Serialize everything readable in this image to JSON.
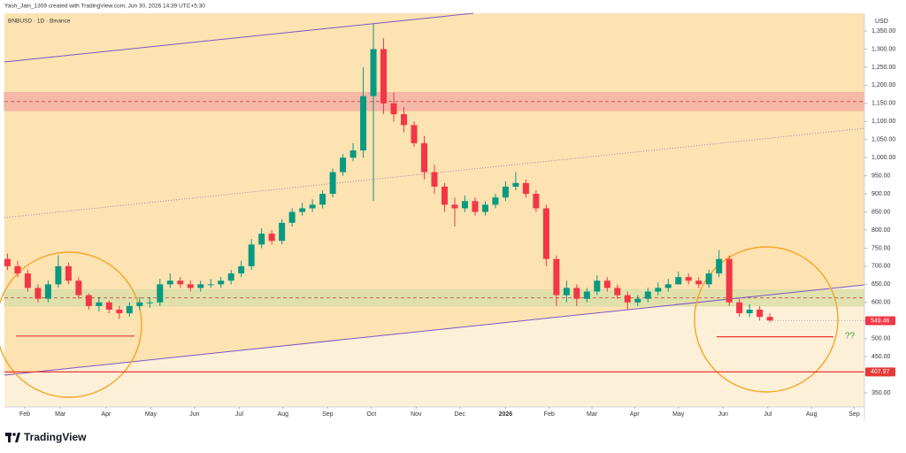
{
  "header": "Yash_Jain_1309 created with TradingView.com, Jun 30, 2026 14:39 UTC+5:30",
  "brand": "TradingView",
  "chart_data": {
    "type": "candlestick",
    "title": "BNBUSD · 1D · Binance",
    "currency": "USD",
    "annotation": "??",
    "up_color": "#089981",
    "down_color": "#f23645",
    "open": [
      720,
      700,
      680,
      640,
      610,
      650,
      700,
      660,
      620,
      590,
      600,
      580,
      570,
      590,
      600,
      600,
      650,
      660,
      650,
      640,
      650,
      650,
      660,
      680,
      700,
      760,
      790,
      770,
      820,
      850,
      860,
      870,
      900,
      960,
      1000,
      1020,
      1170,
      1300,
      1150,
      1120,
      1090,
      1040,
      960,
      920,
      870,
      860,
      880,
      850,
      870,
      890,
      920,
      930,
      900,
      860,
      720,
      620,
      640,
      610,
      630,
      660,
      640,
      620,
      600,
      610,
      630,
      640,
      650,
      670,
      660,
      650,
      680,
      720,
      600,
      570,
      580,
      560
    ],
    "high": [
      735,
      715,
      690,
      650,
      660,
      730,
      710,
      670,
      625,
      615,
      605,
      590,
      600,
      615,
      615,
      665,
      680,
      670,
      660,
      660,
      665,
      670,
      690,
      715,
      775,
      805,
      800,
      830,
      860,
      875,
      885,
      910,
      970,
      1010,
      1040,
      1250,
      1370,
      1330,
      1180,
      1140,
      1100,
      1060,
      980,
      930,
      890,
      895,
      890,
      880,
      900,
      935,
      960,
      940,
      910,
      870,
      730,
      660,
      650,
      640,
      675,
      670,
      650,
      630,
      620,
      640,
      655,
      665,
      685,
      680,
      670,
      690,
      745,
      730,
      610,
      595,
      590,
      570
    ],
    "low": [
      690,
      670,
      630,
      600,
      600,
      640,
      650,
      610,
      580,
      575,
      570,
      555,
      560,
      580,
      585,
      590,
      640,
      640,
      630,
      630,
      640,
      640,
      650,
      670,
      690,
      750,
      760,
      760,
      810,
      840,
      850,
      860,
      890,
      950,
      990,
      1000,
      880,
      1120,
      1100,
      1070,
      1030,
      940,
      900,
      850,
      810,
      850,
      840,
      840,
      860,
      880,
      910,
      890,
      850,
      700,
      590,
      600,
      590,
      600,
      620,
      630,
      610,
      580,
      590,
      600,
      620,
      630,
      650,
      650,
      640,
      640,
      670,
      590,
      560,
      560,
      550,
      545
    ],
    "close": [
      700,
      680,
      640,
      610,
      650,
      700,
      660,
      620,
      590,
      600,
      580,
      570,
      590,
      600,
      600,
      650,
      660,
      650,
      640,
      650,
      650,
      660,
      680,
      700,
      760,
      790,
      770,
      820,
      850,
      860,
      870,
      900,
      960,
      1000,
      1020,
      1170,
      1300,
      1150,
      1120,
      1090,
      1040,
      960,
      920,
      870,
      860,
      880,
      850,
      870,
      890,
      920,
      930,
      900,
      860,
      720,
      620,
      640,
      610,
      630,
      660,
      640,
      620,
      600,
      610,
      630,
      640,
      650,
      670,
      660,
      650,
      680,
      720,
      600,
      570,
      580,
      560,
      550
    ],
    "xlim": [
      -0.3,
      84.3
    ],
    "xticks": [
      {
        "value": 1.7,
        "label": "Feb"
      },
      {
        "value": 5.2,
        "label": "Mar"
      },
      {
        "value": 9.7,
        "label": "Apr"
      },
      {
        "value": 14.1,
        "label": "May"
      },
      {
        "value": 18.4,
        "label": "Jun"
      },
      {
        "value": 22.8,
        "label": "Jul"
      },
      {
        "value": 27.1,
        "label": "Aug"
      },
      {
        "value": 31.5,
        "label": "Sep"
      },
      {
        "value": 35.8,
        "label": "Oct"
      },
      {
        "value": 40.2,
        "label": "Nov"
      },
      {
        "value": 44.5,
        "label": "Dec"
      },
      {
        "value": 49,
        "label": "2026"
      },
      {
        "value": 53.3,
        "label": "Feb"
      },
      {
        "value": 57.5,
        "label": "Mar"
      },
      {
        "value": 61.7,
        "label": "Apr"
      },
      {
        "value": 66,
        "label": "May"
      },
      {
        "value": 70.4,
        "label": "Jun"
      },
      {
        "value": 74.8,
        "label": "Jul"
      },
      {
        "value": 79.1,
        "label": "Aug"
      },
      {
        "value": 83.3,
        "label": "Sep"
      }
    ],
    "ylim": [
      311,
      1399
    ],
    "yticks": [
      {
        "value": 350,
        "label": "350.00"
      },
      {
        "value": 400,
        "label": "400.00"
      },
      {
        "value": 450,
        "label": "450.00"
      },
      {
        "value": 500,
        "label": "500.00"
      },
      {
        "value": 550,
        "label": "550.00"
      },
      {
        "value": 600,
        "label": "600.00"
      },
      {
        "value": 650,
        "label": "650.00"
      },
      {
        "value": 700,
        "label": "700.00"
      },
      {
        "value": 750,
        "label": "750.00"
      },
      {
        "value": 800,
        "label": "800.00"
      },
      {
        "value": 850,
        "label": "850.00"
      },
      {
        "value": 900,
        "label": "900.00"
      },
      {
        "value": 950,
        "label": "950.00"
      },
      {
        "value": 1000,
        "label": "1,000.00"
      },
      {
        "value": 1050,
        "label": "1,050.00"
      },
      {
        "value": 1100,
        "label": "1,100.00"
      },
      {
        "value": 1150,
        "label": "1,150.00"
      },
      {
        "value": 1200,
        "label": "1,200.00"
      },
      {
        "value": 1250,
        "label": "1,250.00"
      },
      {
        "value": 1300,
        "label": "1,300.00"
      },
      {
        "value": 1350,
        "label": "1,350.00"
      }
    ],
    "zones": [
      {
        "from": 1130,
        "to": 1180,
        "color": "#f4b0a4"
      },
      {
        "from": 590,
        "to": 635,
        "color": "#dcdfa8"
      }
    ],
    "price_lines": [
      {
        "value": 549.46,
        "color": "#f23645"
      },
      {
        "value": 407.97,
        "color": "#e53935"
      }
    ],
    "support_lines": [
      507,
      505
    ]
  }
}
